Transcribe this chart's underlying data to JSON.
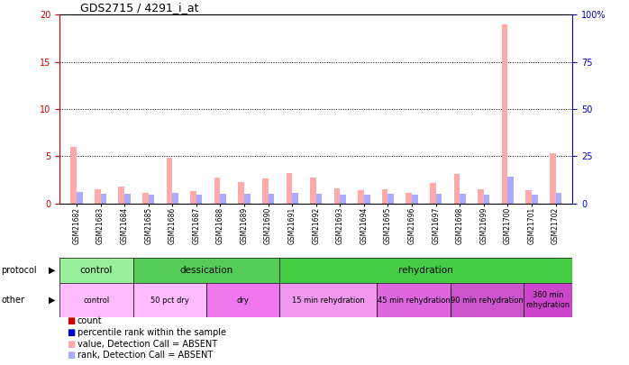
{
  "title": "GDS2715 / 4291_i_at",
  "samples": [
    "GSM21682",
    "GSM21683",
    "GSM21684",
    "GSM21685",
    "GSM21686",
    "GSM21687",
    "GSM21688",
    "GSM21689",
    "GSM21690",
    "GSM21691",
    "GSM21692",
    "GSM21693",
    "GSM21694",
    "GSM21695",
    "GSM21696",
    "GSM21697",
    "GSM21698",
    "GSM21699",
    "GSM21700",
    "GSM21701",
    "GSM21702"
  ],
  "value_absent": [
    6.0,
    1.5,
    1.8,
    1.1,
    4.8,
    1.3,
    2.7,
    2.3,
    2.6,
    3.2,
    2.7,
    1.6,
    1.4,
    1.5,
    1.1,
    2.2,
    3.1,
    1.5,
    19.0,
    1.4,
    5.3
  ],
  "rank_absent": [
    1.2,
    1.0,
    1.0,
    0.9,
    1.1,
    0.9,
    1.0,
    1.0,
    1.0,
    1.1,
    1.0,
    0.9,
    0.9,
    1.0,
    0.9,
    1.0,
    1.0,
    0.9,
    2.8,
    0.9,
    1.1
  ],
  "ylim_left": [
    0,
    20
  ],
  "ylim_right": [
    0,
    100
  ],
  "yticks_left": [
    0,
    5,
    10,
    15,
    20
  ],
  "yticks_right": [
    0,
    25,
    50,
    75,
    100
  ],
  "ytick_labels_left": [
    "0",
    "5",
    "10",
    "15",
    "20"
  ],
  "ytick_labels_right": [
    "0",
    "25",
    "50",
    "75",
    "100%"
  ],
  "left_color": "#cc0000",
  "right_color": "#0000cc",
  "bar_color_absent": "#ffaaaa",
  "bar_color_rank_absent": "#aaaaff",
  "protocol_spans": [
    {
      "label": "control",
      "start": 0,
      "end": 3,
      "color": "#99ee99"
    },
    {
      "label": "dessication",
      "start": 3,
      "end": 9,
      "color": "#55cc55"
    },
    {
      "label": "rehydration",
      "start": 9,
      "end": 21,
      "color": "#44cc44"
    }
  ],
  "other_spans": [
    {
      "label": "control",
      "start": 0,
      "end": 3,
      "color": "#ffbbff"
    },
    {
      "label": "50 pct dry",
      "start": 3,
      "end": 6,
      "color": "#ffbbff"
    },
    {
      "label": "dry",
      "start": 6,
      "end": 9,
      "color": "#ee77ee"
    },
    {
      "label": "15 min rehydration",
      "start": 9,
      "end": 13,
      "color": "#ee99ee"
    },
    {
      "label": "45 min rehydration",
      "start": 13,
      "end": 16,
      "color": "#dd66dd"
    },
    {
      "label": "90 min rehydration",
      "start": 16,
      "end": 19,
      "color": "#cc55cc"
    },
    {
      "label": "360 min\nrehydration",
      "start": 19,
      "end": 21,
      "color": "#cc44cc"
    }
  ],
  "legend_items": [
    {
      "label": "count",
      "color": "#cc0000"
    },
    {
      "label": "percentile rank within the sample",
      "color": "#0000cc"
    },
    {
      "label": "value, Detection Call = ABSENT",
      "color": "#ffaaaa"
    },
    {
      "label": "rank, Detection Call = ABSENT",
      "color": "#aaaaff"
    }
  ]
}
